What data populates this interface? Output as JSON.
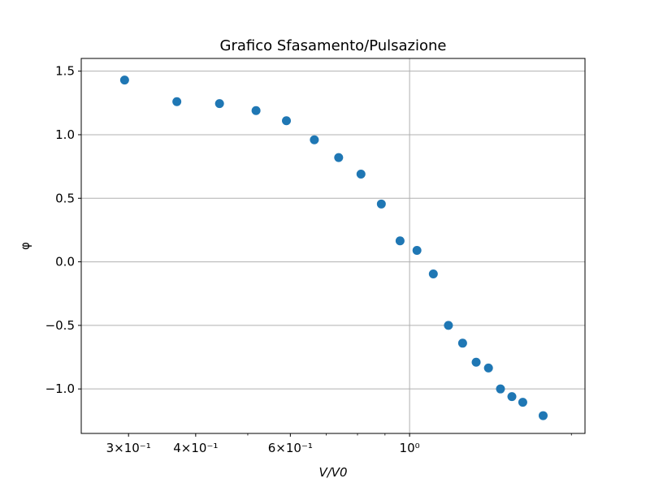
{
  "chart_data": {
    "type": "scatter",
    "title": "Grafico Sfasamento/Pulsazione",
    "xlabel": "V/V0",
    "ylabel": "φ",
    "xscale": "log",
    "xlim": [
      0.245,
      2.12
    ],
    "ylim": [
      -1.35,
      1.6
    ],
    "grid": true,
    "marker_color": "#1f77b4",
    "x_ticks": [
      {
        "value": 0.3,
        "label": "3×10⁻¹"
      },
      {
        "value": 0.4,
        "label": "4×10⁻¹"
      },
      {
        "value": 0.6,
        "label": "6×10⁻¹"
      },
      {
        "value": 1.0,
        "label": "10⁰"
      }
    ],
    "x_minor_ticks": [
      0.5,
      0.7,
      0.8,
      0.9,
      2.0
    ],
    "y_ticks": [
      {
        "value": 1.5,
        "label": "1.5"
      },
      {
        "value": 1.0,
        "label": "1.0"
      },
      {
        "value": 0.5,
        "label": "0.5"
      },
      {
        "value": 0.0,
        "label": "0.0"
      },
      {
        "value": -0.5,
        "label": "−0.5"
      },
      {
        "value": -1.0,
        "label": "−1.0"
      }
    ],
    "points": [
      {
        "x": 0.295,
        "y": 1.43
      },
      {
        "x": 0.369,
        "y": 1.26
      },
      {
        "x": 0.443,
        "y": 1.245
      },
      {
        "x": 0.518,
        "y": 1.19
      },
      {
        "x": 0.59,
        "y": 1.11
      },
      {
        "x": 0.665,
        "y": 0.96
      },
      {
        "x": 0.738,
        "y": 0.82
      },
      {
        "x": 0.812,
        "y": 0.69
      },
      {
        "x": 0.886,
        "y": 0.455
      },
      {
        "x": 0.96,
        "y": 0.165
      },
      {
        "x": 1.032,
        "y": 0.09
      },
      {
        "x": 1.107,
        "y": -0.095
      },
      {
        "x": 1.181,
        "y": -0.5
      },
      {
        "x": 1.255,
        "y": -0.64
      },
      {
        "x": 1.33,
        "y": -0.79
      },
      {
        "x": 1.402,
        "y": -0.835
      },
      {
        "x": 1.476,
        "y": -1.0
      },
      {
        "x": 1.55,
        "y": -1.06
      },
      {
        "x": 1.624,
        "y": -1.105
      },
      {
        "x": 1.772,
        "y": -1.21
      }
    ]
  }
}
